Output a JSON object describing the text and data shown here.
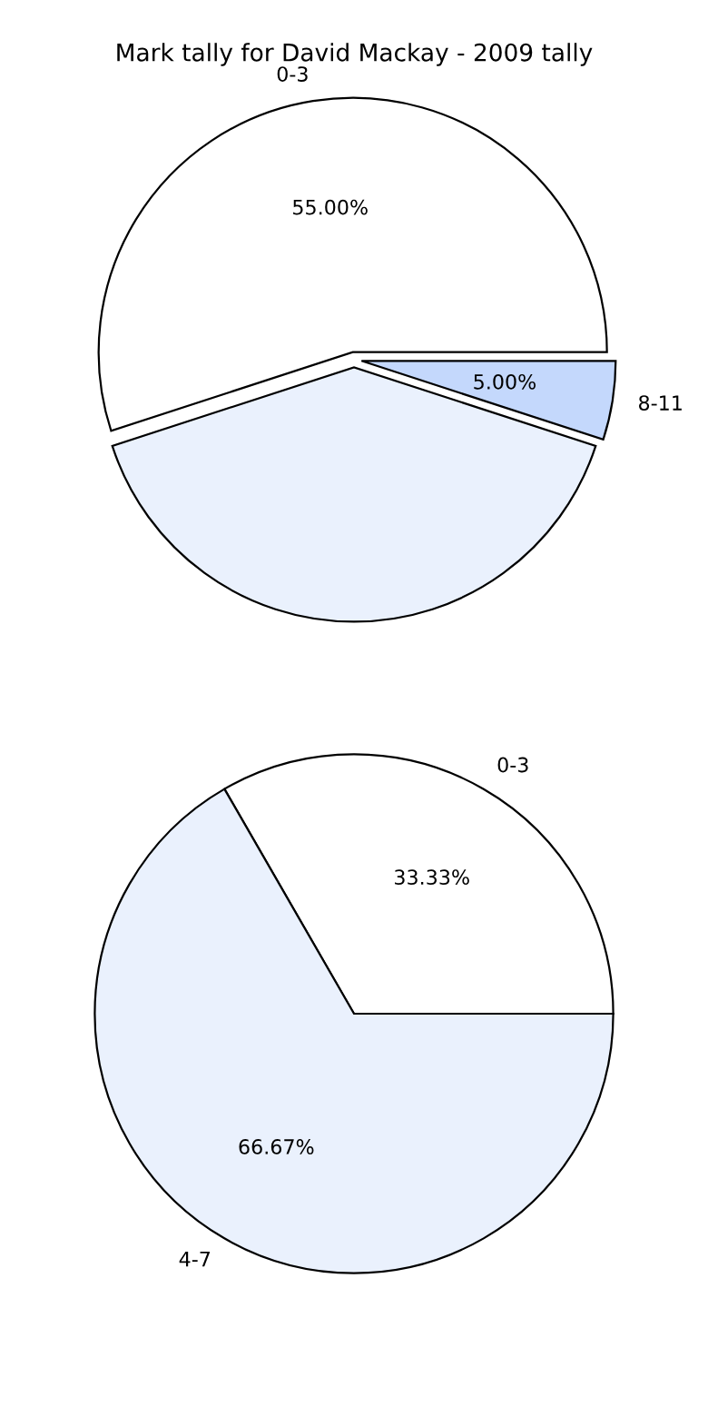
{
  "chart_data": [
    {
      "type": "pie",
      "title": "Mark tally for David Mackay - 2009 tally",
      "categories": [
        "0-3",
        null,
        "8-11"
      ],
      "values": [
        55,
        40,
        5
      ],
      "colors": [
        "#ffffff",
        "#eaf1fd",
        "#c4d8fc"
      ],
      "value_labels": [
        "55.00%",
        null,
        "5.00%"
      ]
    },
    {
      "type": "pie",
      "categories": [
        "0-3",
        "4-7"
      ],
      "values": [
        33.33,
        66.67
      ],
      "colors": [
        "#ffffff",
        "#eaf1fd"
      ],
      "value_labels": [
        "33.33%",
        "66.67%"
      ]
    }
  ]
}
